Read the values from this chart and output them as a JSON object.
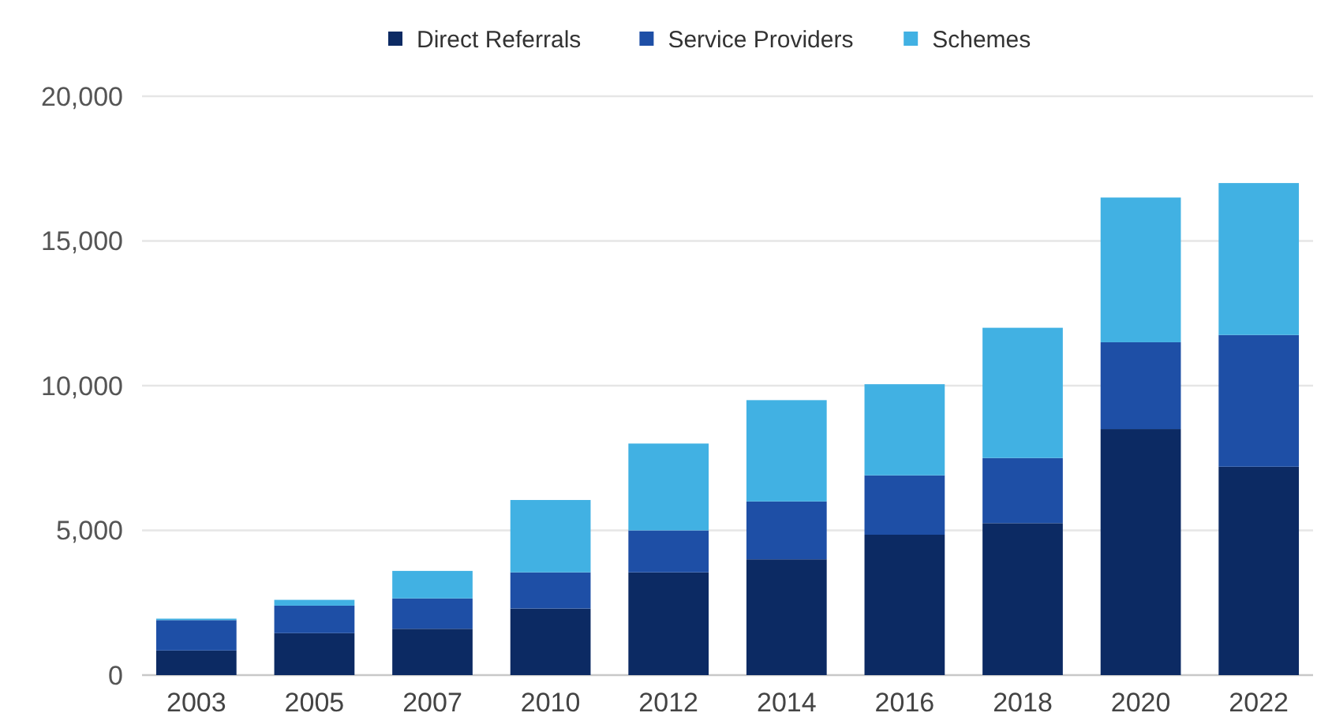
{
  "chart_data": {
    "type": "bar",
    "stacked": true,
    "categories": [
      "2003",
      "2005",
      "2007",
      "2010",
      "2012",
      "2014",
      "2016",
      "2018",
      "2020",
      "2022"
    ],
    "series": [
      {
        "name": "Direct Referrals",
        "color": "#0c2a63",
        "values": [
          850,
          1450,
          1600,
          2300,
          3550,
          4000,
          4850,
          5250,
          8500,
          7200
        ]
      },
      {
        "name": "Service Providers",
        "color": "#1e4fa6",
        "values": [
          1050,
          950,
          1050,
          1250,
          1450,
          2000,
          2050,
          2250,
          3000,
          4550
        ]
      },
      {
        "name": "Schemes",
        "color": "#41b1e3",
        "values": [
          50,
          200,
          950,
          2500,
          3000,
          3500,
          3150,
          4500,
          5000,
          5250
        ]
      }
    ],
    "ylim": [
      0,
      20000
    ],
    "yticks": [
      {
        "value": 0,
        "label": "0"
      },
      {
        "value": 5000,
        "label": "5,000"
      },
      {
        "value": 10000,
        "label": "10,000"
      },
      {
        "value": 15000,
        "label": "15,000"
      },
      {
        "value": 20000,
        "label": "20,000"
      }
    ],
    "grid": "y",
    "legend": "top"
  }
}
